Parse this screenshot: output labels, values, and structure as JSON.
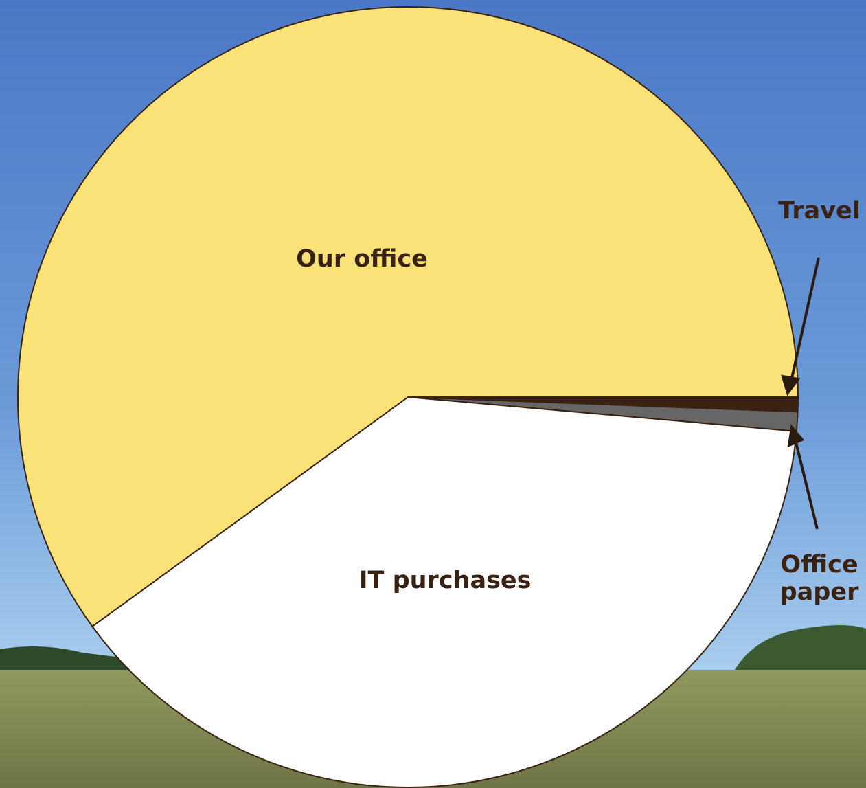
{
  "chart_data": {
    "type": "pie",
    "categories": [
      "Travel",
      "Office paper",
      "IT purchases",
      "Our office"
    ],
    "values": [
      0.6,
      0.8,
      38.6,
      60
    ],
    "colors": [
      "#3a2212",
      "#666666",
      "#ffffff",
      "#fae278"
    ]
  }
}
